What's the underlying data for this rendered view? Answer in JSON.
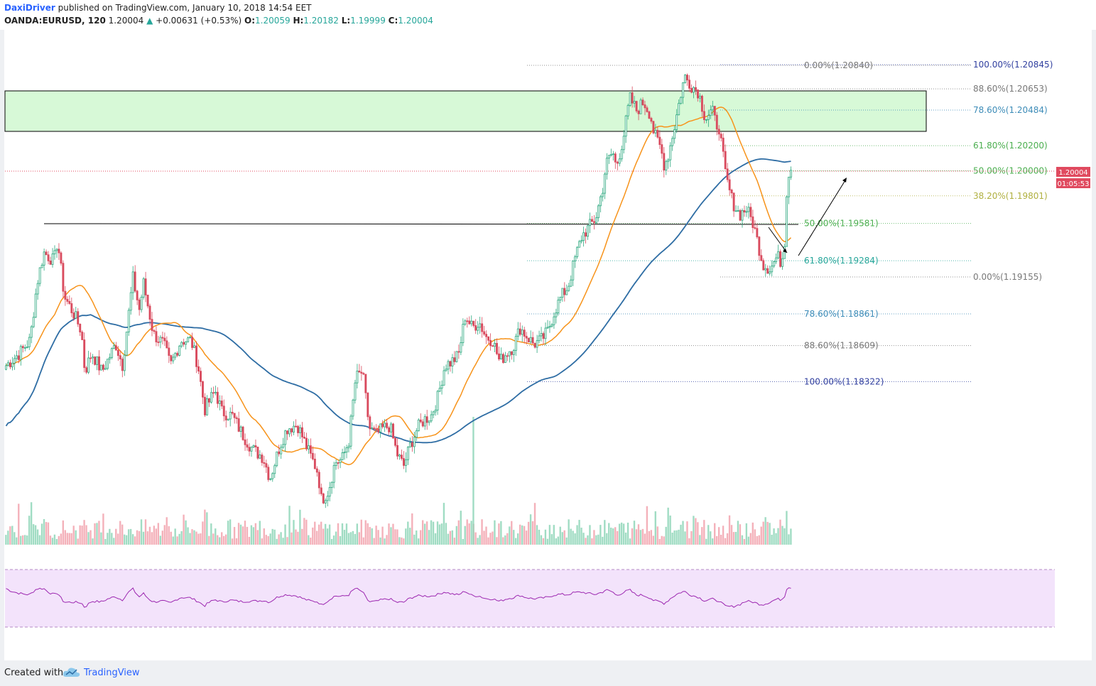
{
  "header": {
    "author": "DaxiDriver",
    "published": "published on TradingView.com, January 10, 2018 14:54 EET",
    "symbol": "OANDA:EURUSD, 120",
    "last": "1.20004",
    "change": "+0.00631 (+0.53%)",
    "o_label": "O:",
    "o_value": "1.20059",
    "h_label": "H:",
    "h_value": "1.20182",
    "l_label": "L:",
    "l_value": "1.19999",
    "c_label": "C:",
    "c_value": "1.20004"
  },
  "price_tags": {
    "last_price": "1.20004",
    "countdown": "01:05:53"
  },
  "footer": {
    "created_with": "Created with",
    "brand": "TradingView"
  },
  "colors": {
    "up": "#2ca87f",
    "down": "#d94b5e",
    "ma_fast": "#f7931a",
    "ma_slow": "#2e6da4",
    "zone": "#c9f7c9",
    "rsi": "#9c27b0",
    "rsi_band": "#f3e3fb",
    "last_price": "#e04a5f"
  },
  "chart_data": {
    "type": "candlestick",
    "symbol": "OANDA:EURUSD",
    "timeframe": "120",
    "ylim": [
      1.1765,
      1.2105
    ],
    "last_price": 1.20004,
    "supply_zone": {
      "top": 1.2065,
      "bottom": 1.2044
    },
    "resistance_line": 1.1958,
    "fib_right": [
      {
        "label": "100.00%(1.20845)",
        "value": 1.20845,
        "color": "#303f9f"
      },
      {
        "label": "88.60%(1.20653)",
        "value": 1.20653,
        "color": "#787878"
      },
      {
        "label": "78.60%(1.20484)",
        "value": 1.20484,
        "color": "#3d8cb8"
      },
      {
        "label": "61.80%(1.20200)",
        "value": 1.202,
        "color": "#4caf50"
      },
      {
        "label": "50.00%(1.20000)",
        "value": 1.2,
        "color": "#4caf50"
      },
      {
        "label": "38.20%(1.19801)",
        "value": 1.19801,
        "color": "#b0b040"
      },
      {
        "label": "0.00%(1.19155)",
        "value": 1.19155,
        "color": "#787878"
      }
    ],
    "fib_left": [
      {
        "label": "0.00%(1.20840)",
        "value": 1.2084,
        "color": "#787878"
      },
      {
        "label": "50.00%(1.19581)",
        "value": 1.19581,
        "color": "#4caf50"
      },
      {
        "label": "61.80%(1.19284)",
        "value": 1.19284,
        "color": "#26a69a"
      },
      {
        "label": "78.60%(1.18861)",
        "value": 1.18861,
        "color": "#3d8cb8"
      },
      {
        "label": "88.60%(1.18609)",
        "value": 1.18609,
        "color": "#787878"
      },
      {
        "label": "100.00%(1.18322)",
        "value": 1.18322,
        "color": "#303f9f"
      }
    ],
    "price_path": [
      [
        0,
        1.1845
      ],
      [
        0.02,
        1.1855
      ],
      [
        0.035,
        1.1865
      ],
      [
        0.045,
        1.191
      ],
      [
        0.055,
        1.1935
      ],
      [
        0.07,
        1.1928
      ],
      [
        0.075,
        1.1945
      ],
      [
        0.085,
        1.19
      ],
      [
        0.1,
        1.1885
      ],
      [
        0.11,
        1.1872
      ],
      [
        0.115,
        1.184
      ],
      [
        0.125,
        1.1855
      ],
      [
        0.14,
        1.184
      ],
      [
        0.16,
        1.1862
      ],
      [
        0.17,
        1.1845
      ],
      [
        0.185,
        1.1915
      ],
      [
        0.195,
        1.1888
      ],
      [
        0.2,
        1.1912
      ],
      [
        0.215,
        1.187
      ],
      [
        0.23,
        1.1862
      ],
      [
        0.24,
        1.1845
      ],
      [
        0.255,
        1.1865
      ],
      [
        0.27,
        1.1865
      ],
      [
        0.28,
        1.1845
      ],
      [
        0.29,
        1.181
      ],
      [
        0.305,
        1.1825
      ],
      [
        0.315,
        1.1808
      ],
      [
        0.33,
        1.1805
      ],
      [
        0.345,
        1.179
      ],
      [
        0.36,
        1.1778
      ],
      [
        0.375,
        1.1772
      ],
      [
        0.385,
        1.1755
      ],
      [
        0.4,
        1.1782
      ],
      [
        0.41,
        1.1795
      ],
      [
        0.425,
        1.1798
      ],
      [
        0.44,
        1.1778
      ],
      [
        0.455,
        1.176
      ],
      [
        0.46,
        1.1738
      ],
      [
        0.47,
        1.1745
      ],
      [
        0.48,
        1.1768
      ],
      [
        0.49,
        1.177
      ],
      [
        0.5,
        1.1785
      ],
      [
        0.51,
        1.1835
      ],
      [
        0.52,
        1.184
      ],
      [
        0.53,
        1.1795
      ],
      [
        0.54,
        1.179
      ],
      [
        0.55,
        1.1795
      ],
      [
        0.56,
        1.1797
      ],
      [
        0.57,
        1.1775
      ],
      [
        0.58,
        1.1765
      ],
      [
        0.59,
        1.1782
      ],
      [
        0.6,
        1.1795
      ],
      [
        0.61,
        1.1802
      ],
      [
        0.62,
        1.1805
      ],
      [
        0.63,
        1.182
      ],
      [
        0.64,
        1.1845
      ],
      [
        0.65,
        1.1848
      ],
      [
        0.66,
        1.1853
      ],
      [
        0.67,
        1.1885
      ],
      [
        0.68,
        1.1875
      ],
      [
        0.69,
        1.188
      ],
      [
        0.7,
        1.1868
      ],
      [
        0.71,
        1.1865
      ],
      [
        0.72,
        1.1848
      ],
      [
        0.73,
        1.1855
      ],
      [
        0.74,
        1.186
      ],
      [
        0.75,
        1.1875
      ],
      [
        0.76,
        1.1868
      ],
      [
        0.77,
        1.1862
      ],
      [
        0.78,
        1.1865
      ],
      [
        0.79,
        1.1872
      ],
      [
        0.8,
        1.1888
      ],
      [
        0.81,
        1.19
      ],
      [
        0.82,
        1.1908
      ],
      [
        0.83,
        1.193
      ],
      [
        0.84,
        1.1948
      ],
      [
        0.85,
        1.1955
      ],
      [
        0.86,
        1.1962
      ],
      [
        0.87,
        1.1985
      ],
      [
        0.875,
        1.2005
      ],
      [
        0.885,
        1.2015
      ],
      [
        0.89,
        1.2003
      ],
      [
        0.9,
        1.2025
      ],
      [
        0.91,
        1.2058
      ],
      [
        0.92,
        1.2048
      ],
      [
        0.93,
        1.2055
      ],
      [
        0.94,
        1.2045
      ],
      [
        0.945,
        1.203
      ],
      [
        0.955,
        1.2018
      ],
      [
        0.96,
        1.2005
      ],
      [
        0.965,
        1.201
      ],
      [
        0.975,
        1.2035
      ],
      [
        0.985,
        1.2063
      ],
      [
        0.99,
        1.2075
      ],
      [
        1.0,
        1.2068
      ],
      [
        1.01,
        1.2063
      ],
      [
        1.02,
        1.2042
      ],
      [
        1.03,
        1.2048
      ],
      [
        1.035,
        1.2038
      ],
      [
        1.04,
        1.2035
      ],
      [
        1.045,
        1.2015
      ],
      [
        1.05,
        1.1995
      ],
      [
        1.06,
        1.1975
      ],
      [
        1.07,
        1.1965
      ],
      [
        1.08,
        1.197
      ],
      [
        1.09,
        1.1958
      ],
      [
        1.1,
        1.1935
      ],
      [
        1.105,
        1.1925
      ],
      [
        1.115,
        1.1922
      ],
      [
        1.125,
        1.1932
      ],
      [
        1.13,
        1.1928
      ],
      [
        1.135,
        1.1935
      ],
      [
        1.14,
        1.1998
      ],
      [
        1.145,
        1.20004
      ]
    ],
    "rsi": {
      "band_top": 70,
      "band_bottom": 30,
      "ylim": [
        20,
        90
      ]
    },
    "volume": {
      "type": "bar"
    }
  }
}
